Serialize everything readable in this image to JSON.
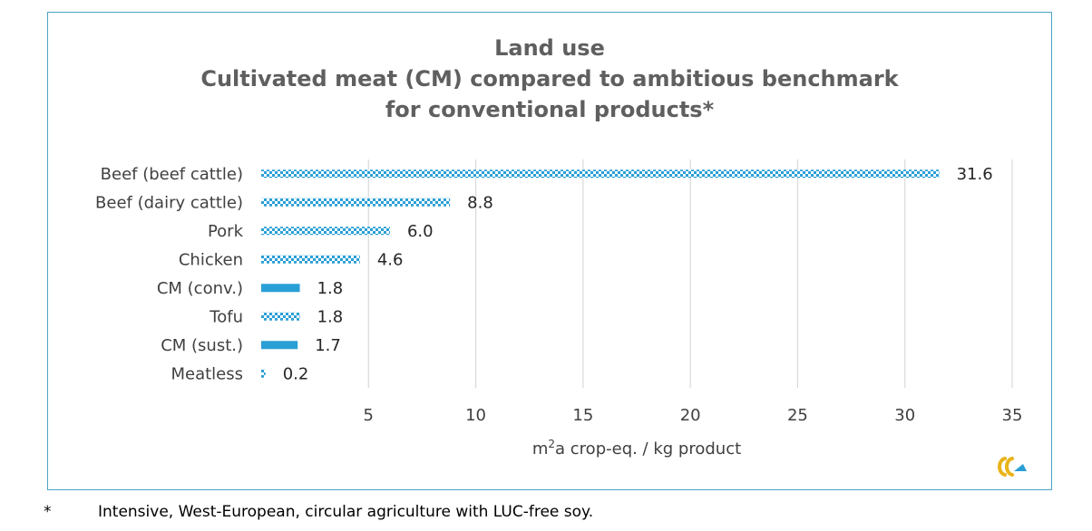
{
  "colors": {
    "accent": "#2a9fd6",
    "frame": "#4aa3c4",
    "grid": "#d9d9d9",
    "title": "#5f5f5f"
  },
  "chart_data": {
    "type": "bar",
    "orientation": "horizontal",
    "title": "Land use",
    "subtitle": "Cultivated meat (CM) compared to ambitious benchmark for conventional products*",
    "xlabel": "m²a crop-eq.  / kg product",
    "xlim": [
      0,
      35
    ],
    "xticks": [
      5,
      10,
      15,
      20,
      25,
      30,
      35
    ],
    "grid": "vertical",
    "categories": [
      "Beef (beef cattle)",
      "Beef (dairy cattle)",
      "Pork",
      "Chicken",
      "CM (conv.)",
      "Tofu",
      "CM (sust.)",
      "Meatless"
    ],
    "values": [
      31.6,
      8.8,
      6.0,
      4.6,
      1.8,
      1.8,
      1.7,
      0.2
    ],
    "value_labels": [
      "31.6",
      "8.8",
      "6.0",
      "4.6",
      "1.8",
      "1.8",
      "1.7",
      "0.2"
    ],
    "fills": [
      "pattern",
      "pattern",
      "pattern",
      "pattern",
      "solid",
      "pattern",
      "solid",
      "pattern"
    ]
  },
  "footnote": {
    "mark": "*",
    "text": "Intensive, West-European, circular agriculture with LUC-free soy."
  },
  "logo_icon": "company-logo-icon"
}
